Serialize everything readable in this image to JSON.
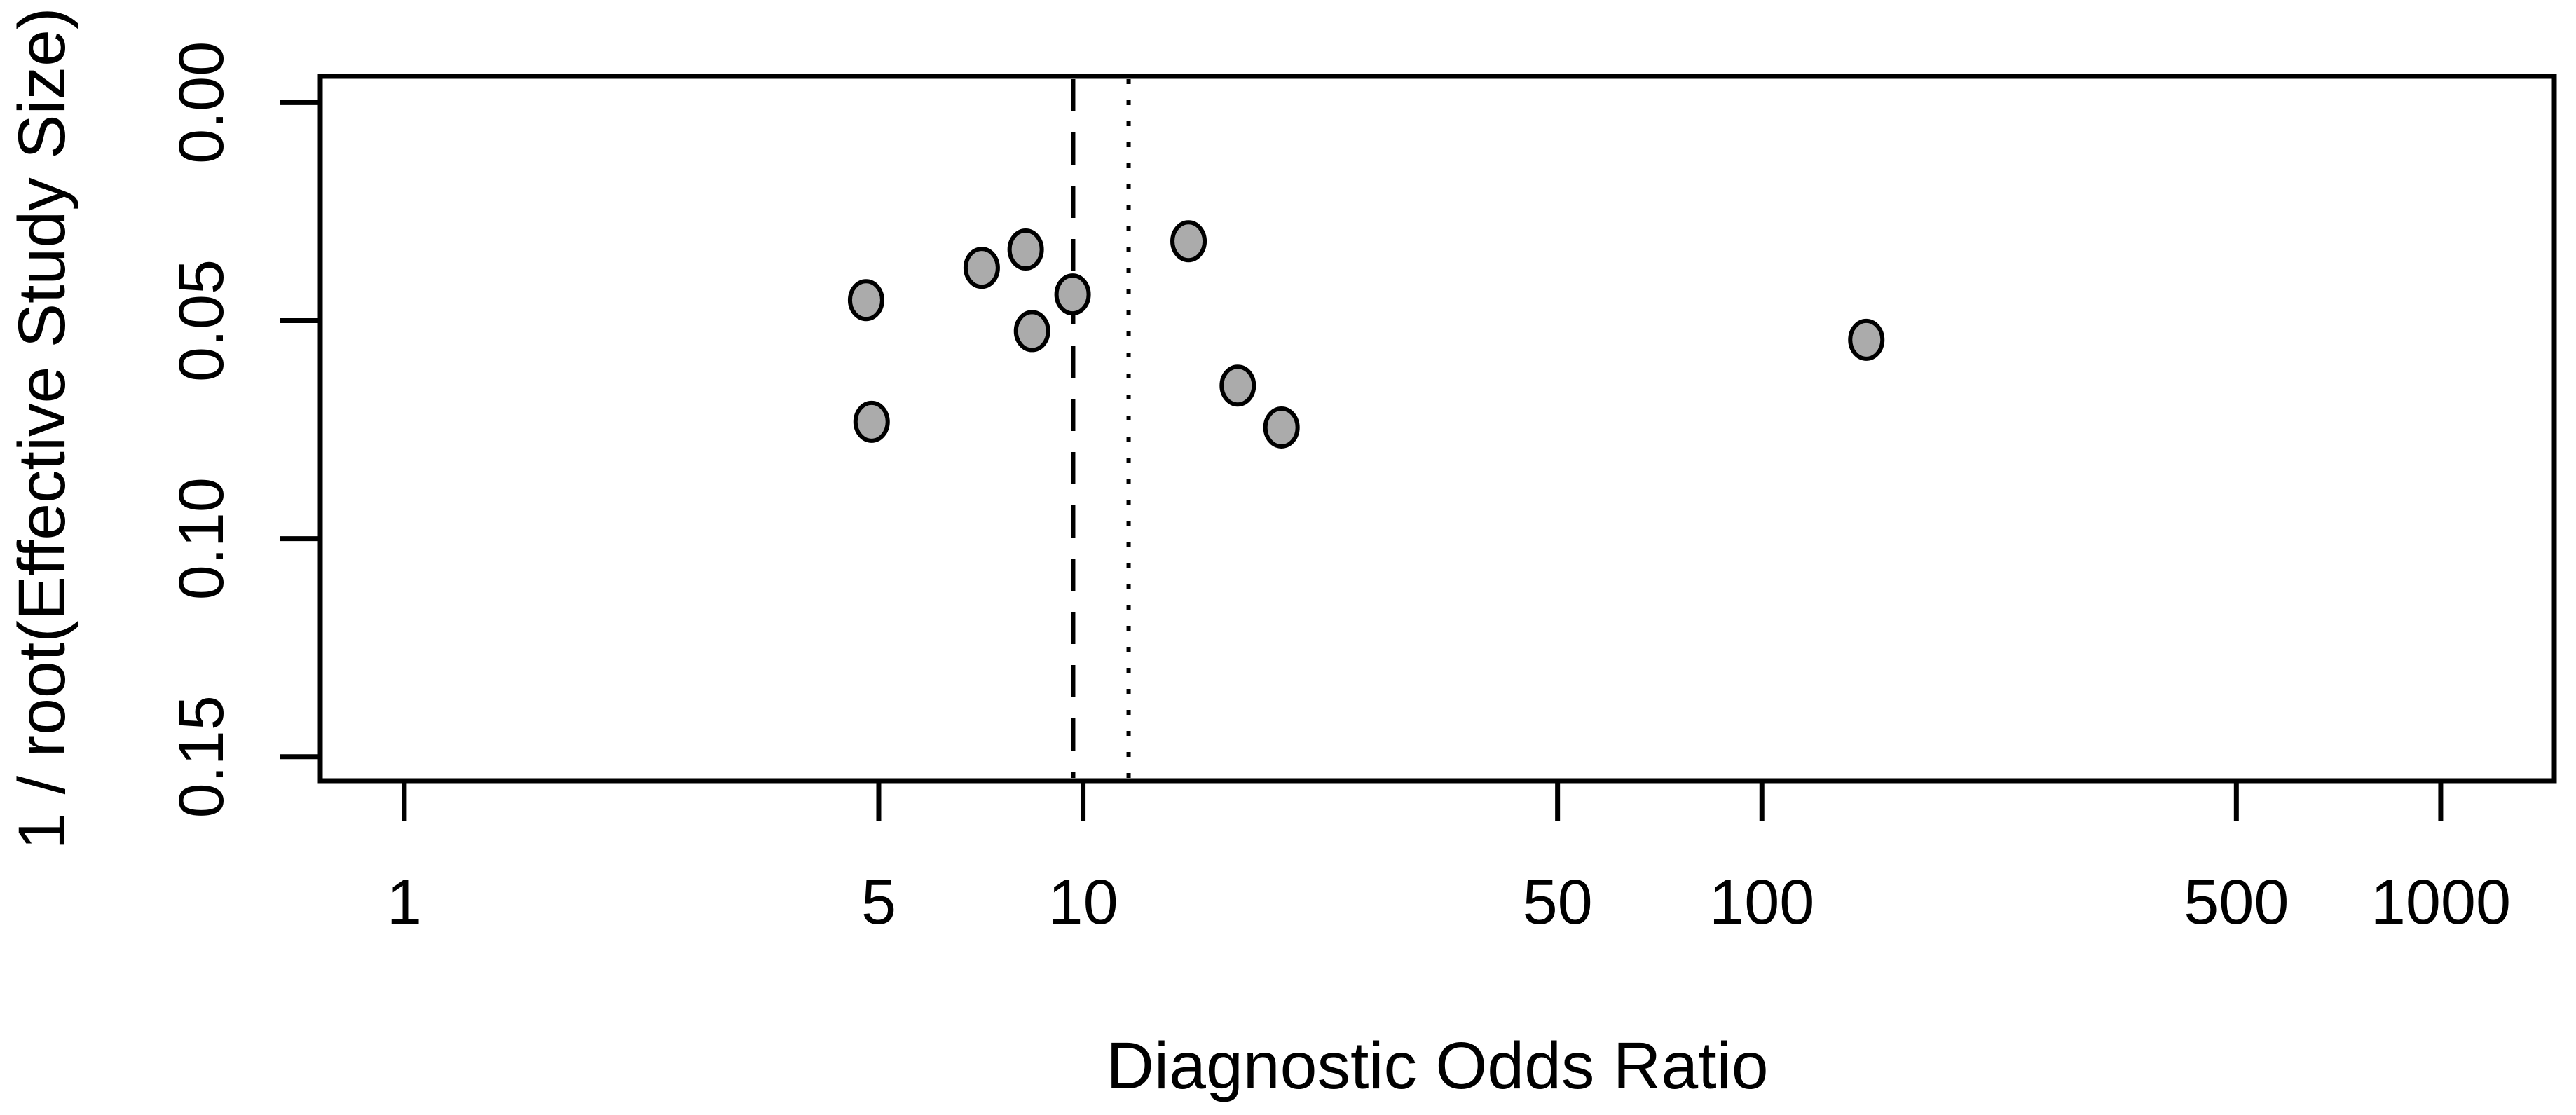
{
  "chart_data": {
    "type": "scatter",
    "title": "",
    "xlabel": "Diagnostic Odds Ratio",
    "ylabel": "1 / root(Effective Study Size)",
    "x_axis": {
      "scale": "log10",
      "ticks": [
        1,
        5,
        10,
        50,
        100,
        500,
        1000
      ],
      "tick_labels": [
        "1",
        "5",
        "10",
        "50",
        "100",
        "500",
        "1000"
      ],
      "domain": [
        0.752,
        1470
      ]
    },
    "y_axis": {
      "scale": "linear",
      "direction": "down",
      "ticks": [
        0,
        0.05,
        0.1,
        0.15
      ],
      "tick_labels": [
        "0.00",
        "0.05",
        "0.10",
        "0.15"
      ],
      "domain": [
        -0.006,
        0.1555
      ]
    },
    "points": [
      {
        "dor": 4.79,
        "inv_root_ess": 0.0453
      },
      {
        "dor": 4.88,
        "inv_root_ess": 0.0732
      },
      {
        "dor": 7.09,
        "inv_root_ess": 0.0379
      },
      {
        "dor": 8.23,
        "inv_root_ess": 0.0337
      },
      {
        "dor": 9.65,
        "inv_root_ess": 0.044
      },
      {
        "dor": 8.41,
        "inv_root_ess": 0.0524
      },
      {
        "dor": 14.3,
        "inv_root_ess": 0.0318
      },
      {
        "dor": 16.9,
        "inv_root_ess": 0.0649
      },
      {
        "dor": 19.6,
        "inv_root_ess": 0.0745
      },
      {
        "dor": 142.5,
        "inv_root_ess": 0.0544
      }
    ],
    "reference_lines": [
      {
        "name": "summary-dor-dashed-line",
        "style": "dashed",
        "dor": 9.67
      },
      {
        "name": "secondary-dor-dotted-line",
        "style": "dotted",
        "dor": 11.67
      }
    ],
    "grid": false,
    "legend": false,
    "colors": {
      "marker_fill": "#ababab",
      "marker_stroke": "#000000",
      "axis": "#000000",
      "background": "#ffffff"
    }
  }
}
